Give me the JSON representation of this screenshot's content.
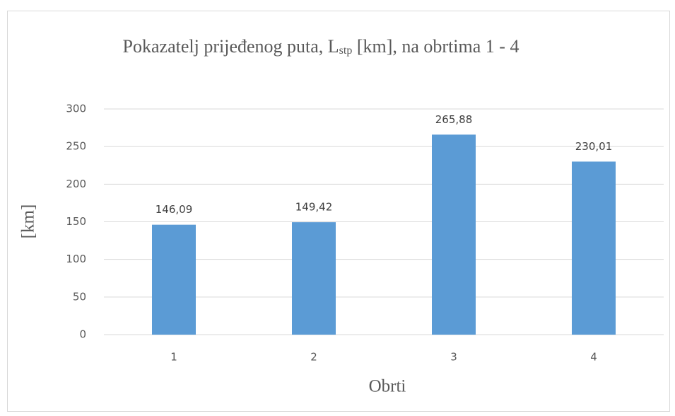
{
  "chart_data": {
    "type": "bar",
    "title": [
      {
        "text": "Pokazatelj prijeđenog puta, L"
      },
      {
        "text": "stp",
        "subscript": true
      },
      {
        "text": " [km], na obrtima 1 - 4"
      }
    ],
    "x_label": "Obrti",
    "y_label": "[km]",
    "categories": [
      "1",
      "2",
      "3",
      "4"
    ],
    "values": [
      146.09,
      149.42,
      265.88,
      230.01
    ],
    "value_labels": [
      "146,09",
      "149,42",
      "265,88",
      "230,01"
    ],
    "color": "#5b9bd5",
    "ylim": [
      0,
      300
    ],
    "yticks": [
      0,
      50,
      100,
      150,
      200,
      250,
      300
    ],
    "grid": true
  }
}
